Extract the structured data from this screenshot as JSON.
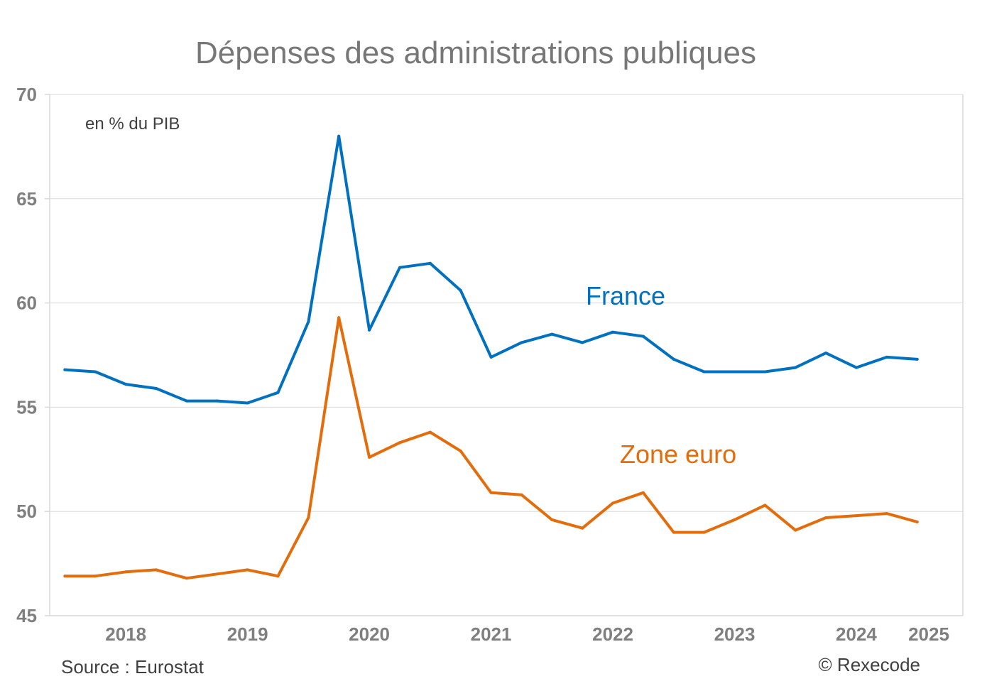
{
  "chart_data": {
    "type": "line",
    "title": "Dépenses des administrations publiques",
    "unit_note": "en % du PIB",
    "source": "Source : Eurostat",
    "credit": "© Rexecode",
    "ylim": [
      45,
      70
    ],
    "yticks": [
      "45",
      "50",
      "55",
      "60",
      "65",
      "70"
    ],
    "xlim": [
      "2017-Q4",
      "2025-Q2"
    ],
    "xticks": [
      "2018",
      "2019",
      "2020",
      "2021",
      "2022",
      "2023",
      "2024",
      "2025"
    ],
    "grid": "horizontal",
    "x": [
      "2017-Q4",
      "2018-Q1",
      "2018-Q2",
      "2018-Q3",
      "2018-Q4",
      "2019-Q1",
      "2019-Q2",
      "2019-Q3",
      "2019-Q4",
      "2020-Q1",
      "2020-Q2",
      "2020-Q3",
      "2020-Q4",
      "2021-Q1",
      "2021-Q2",
      "2021-Q3",
      "2021-Q4",
      "2022-Q1",
      "2022-Q2",
      "2022-Q3",
      "2022-Q4",
      "2023-Q1",
      "2023-Q2",
      "2023-Q3",
      "2023-Q4",
      "2024-Q1",
      "2024-Q2",
      "2024-Q3",
      "2024-Q4",
      "2025-Q1"
    ],
    "series": [
      {
        "name": "France",
        "color": "#0070c0",
        "values": [
          56.8,
          56.7,
          56.1,
          55.9,
          55.3,
          55.3,
          55.2,
          55.7,
          59.1,
          68.0,
          58.7,
          61.7,
          61.9,
          60.6,
          57.4,
          58.1,
          58.5,
          58.1,
          58.6,
          58.4,
          57.3,
          56.7,
          56.7,
          56.7,
          56.9,
          57.6,
          56.9,
          57.4,
          57.3,
          null
        ]
      },
      {
        "name": "Zone euro",
        "color": "#e46c0a",
        "values": [
          46.9,
          46.9,
          47.1,
          47.2,
          46.8,
          47.0,
          47.2,
          46.9,
          49.7,
          59.3,
          52.6,
          53.3,
          53.8,
          52.9,
          50.9,
          50.8,
          49.6,
          49.2,
          50.4,
          50.9,
          49.0,
          49.0,
          49.6,
          50.3,
          49.1,
          49.7,
          49.8,
          49.9,
          49.5,
          null
        ]
      }
    ]
  }
}
